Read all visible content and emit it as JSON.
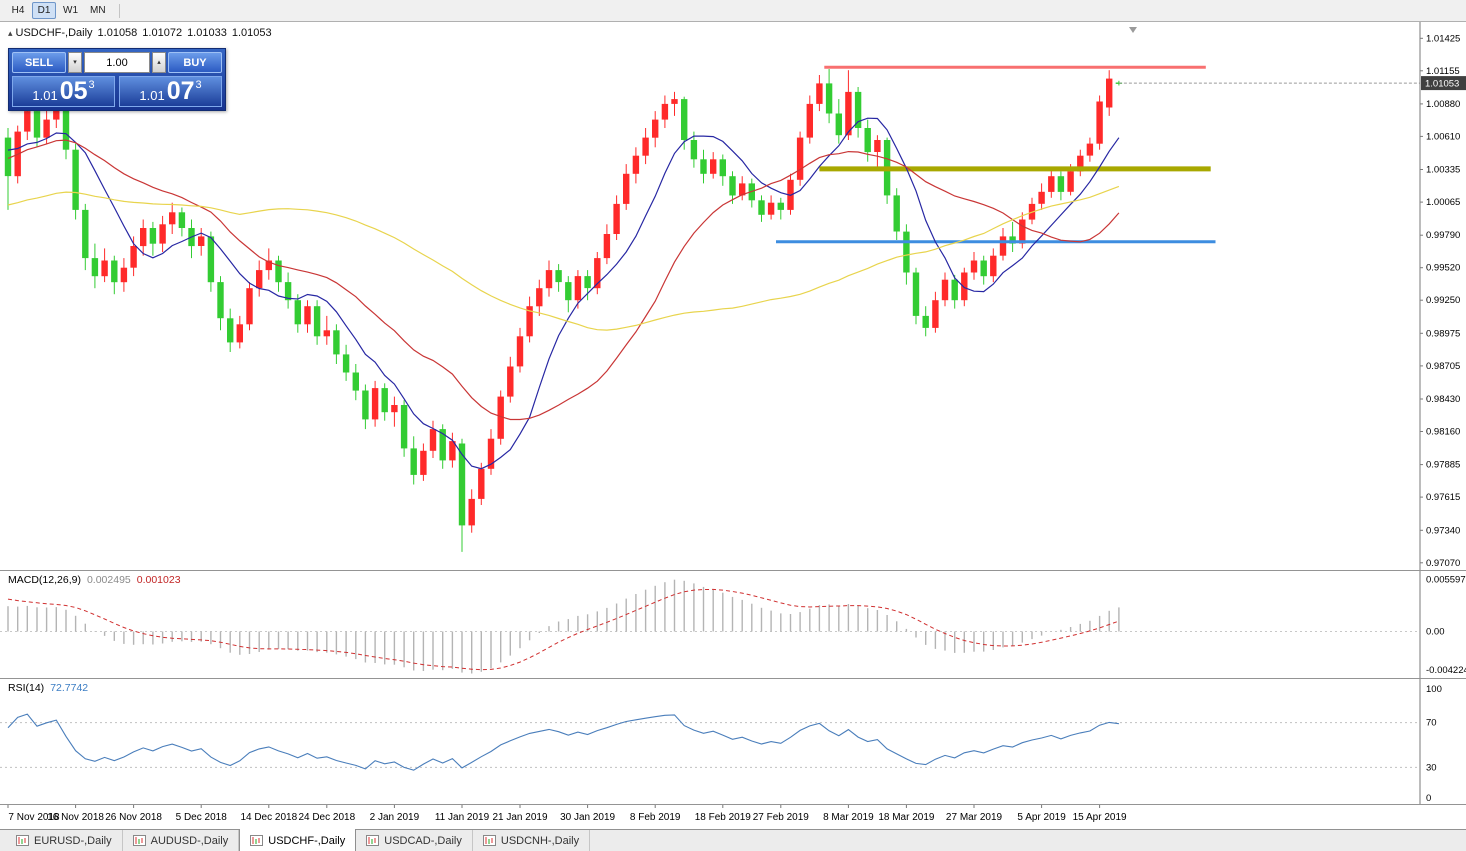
{
  "toolbar": {
    "timeframes": [
      {
        "label": "H4",
        "active": false
      },
      {
        "label": "D1",
        "active": true
      },
      {
        "label": "W1",
        "active": false
      },
      {
        "label": "MN",
        "active": false
      }
    ]
  },
  "icons": {
    "collapse_triangle": "▴",
    "volume_down": "▾",
    "volume_up": "▴"
  },
  "chart_header": {
    "symbol": "USDCHF-,Daily",
    "open": "1.01058",
    "high": "1.01072",
    "low": "1.01033",
    "close": "1.01053"
  },
  "trade_panel": {
    "sell_label": "SELL",
    "buy_label": "BUY",
    "volume": "1.00",
    "sell_price_prefix": "1.01",
    "sell_price_big": "05",
    "sell_price_sup": "3",
    "buy_price_prefix": "1.01",
    "buy_price_big": "07",
    "buy_price_sup": "3"
  },
  "price_scale": {
    "ticks": [
      "1.01425",
      "1.01155",
      "1.00880",
      "1.00610",
      "1.00335",
      "1.00065",
      "0.99790",
      "0.99520",
      "0.99250",
      "0.98975",
      "0.98705",
      "0.98430",
      "0.98160",
      "0.97885",
      "0.97615",
      "0.97340",
      "0.97070"
    ],
    "current": "1.01053"
  },
  "macd_panel": {
    "label": "MACD(12,26,9)",
    "macd_value": "0.002495",
    "signal_value": "0.001023",
    "axis_labels": [
      "0.005597",
      "0.00",
      "-0.004224"
    ]
  },
  "rsi_panel": {
    "label": "RSI(14)",
    "value": "72.7742",
    "axis_labels": [
      "100",
      "70",
      "30",
      "0"
    ]
  },
  "date_axis": {
    "labels": [
      "7 Nov 2018",
      "16 Nov 2018",
      "26 Nov 2018",
      "5 Dec 2018",
      "14 Dec 2018",
      "24 Dec 2018",
      "2 Jan 2019",
      "11 Jan 2019",
      "21 Jan 2019",
      "30 Jan 2019",
      "8 Feb 2019",
      "18 Feb 2019",
      "27 Feb 2019",
      "8 Mar 2019",
      "18 Mar 2019",
      "27 Mar 2019",
      "5 Apr 2019",
      "15 Apr 2019"
    ]
  },
  "tabs": [
    {
      "label": "EURUSD-,Daily",
      "active": false
    },
    {
      "label": "AUDUSD-,Daily",
      "active": false
    },
    {
      "label": "USDCHF-,Daily",
      "active": true
    },
    {
      "label": "USDCAD-,Daily",
      "active": false
    },
    {
      "label": "USDCNH-,Daily",
      "active": false
    }
  ],
  "chart_data": {
    "type": "candlestick",
    "symbol": "USDCHF-,Daily",
    "ylim": [
      0.9701,
      1.0156
    ],
    "up_color": "#ff2a2a",
    "down_color": "#33cc33",
    "current_price": 1.01053,
    "date_tick_indices": [
      0,
      7,
      13,
      20,
      27,
      33,
      40,
      47,
      53,
      60,
      67,
      74,
      80,
      87,
      93,
      100,
      107,
      113
    ],
    "ma": [
      {
        "period": 8,
        "color": "#2727a3"
      },
      {
        "period": 21,
        "color": "#c93636"
      },
      {
        "period": 55,
        "color": "#e8d44d"
      }
    ],
    "hlines": [
      {
        "price": 1.01185,
        "color": "#f87070",
        "width": 3,
        "from_i": 84.5,
        "to_i": 124
      },
      {
        "price": 1.0034,
        "color": "#a8a800",
        "width": 5,
        "from_i": 84,
        "to_i": 124.5
      },
      {
        "price": 0.99735,
        "color": "#3d8de0",
        "width": 3,
        "from_i": 79.5,
        "to_i": 125
      }
    ],
    "macd": {
      "fast": 12,
      "slow": 26,
      "signal_p": 9,
      "ylim": [
        -0.0047,
        0.0061
      ]
    },
    "rsi": {
      "period": 14,
      "levels": [
        70,
        30
      ]
    },
    "pre_closes": [
      0.986,
      0.9875,
      0.989,
      0.9905,
      0.9918,
      0.993,
      0.9944,
      0.9956,
      0.997,
      0.9982,
      0.9992,
      1.0002,
      1.0012,
      1.0022,
      1.0032,
      1.004,
      1.0048,
      1.0054,
      1.0058,
      1.0061,
      1.0062,
      1.006,
      1.0057,
      1.0054,
      1.0052,
      1.005,
      1.0049,
      1.0051,
      1.0055,
      1.0058
    ],
    "candles": [
      [
        1.006,
        1.0068,
        1.0,
        1.0028
      ],
      [
        1.0028,
        1.007,
        1.0022,
        1.0065
      ],
      [
        1.0065,
        1.009,
        1.0058,
        1.0082
      ],
      [
        1.0082,
        1.0088,
        1.0052,
        1.006
      ],
      [
        1.006,
        1.0085,
        1.0055,
        1.0075
      ],
      [
        1.0075,
        1.0092,
        1.0068,
        1.0088
      ],
      [
        1.0088,
        1.009,
        1.0042,
        1.005
      ],
      [
        1.005,
        1.0055,
        0.9992,
        1.0
      ],
      [
        1.0,
        1.0005,
        0.995,
        0.996
      ],
      [
        0.996,
        0.9972,
        0.9935,
        0.9945
      ],
      [
        0.9945,
        0.9968,
        0.994,
        0.9958
      ],
      [
        0.9958,
        0.9962,
        0.993,
        0.994
      ],
      [
        0.994,
        0.996,
        0.9932,
        0.9952
      ],
      [
        0.9952,
        0.9978,
        0.9945,
        0.997
      ],
      [
        0.997,
        0.9992,
        0.9962,
        0.9985
      ],
      [
        0.9985,
        0.999,
        0.9962,
        0.9972
      ],
      [
        0.9972,
        0.9995,
        0.9965,
        0.9988
      ],
      [
        0.9988,
        1.0006,
        0.998,
        0.9998
      ],
      [
        0.9998,
        1.0002,
        0.9978,
        0.9985
      ],
      [
        0.9985,
        0.9992,
        0.996,
        0.997
      ],
      [
        0.997,
        0.9985,
        0.9962,
        0.9978
      ],
      [
        0.9978,
        0.9982,
        0.9932,
        0.994
      ],
      [
        0.994,
        0.9945,
        0.99,
        0.991
      ],
      [
        0.991,
        0.9918,
        0.9882,
        0.989
      ],
      [
        0.989,
        0.9912,
        0.9885,
        0.9905
      ],
      [
        0.9905,
        0.994,
        0.99,
        0.9935
      ],
      [
        0.9935,
        0.9958,
        0.9928,
        0.995
      ],
      [
        0.995,
        0.9968,
        0.9942,
        0.9958
      ],
      [
        0.9958,
        0.9962,
        0.9932,
        0.994
      ],
      [
        0.994,
        0.9948,
        0.9918,
        0.9925
      ],
      [
        0.9925,
        0.993,
        0.9898,
        0.9905
      ],
      [
        0.9905,
        0.9925,
        0.9898,
        0.992
      ],
      [
        0.992,
        0.9925,
        0.9888,
        0.9895
      ],
      [
        0.9895,
        0.9912,
        0.9888,
        0.99
      ],
      [
        0.99,
        0.9905,
        0.9872,
        0.988
      ],
      [
        0.988,
        0.9888,
        0.9858,
        0.9865
      ],
      [
        0.9865,
        0.9872,
        0.9842,
        0.985
      ],
      [
        0.985,
        0.9855,
        0.9818,
        0.9826
      ],
      [
        0.9826,
        0.9858,
        0.982,
        0.9852
      ],
      [
        0.9852,
        0.9856,
        0.9825,
        0.9832
      ],
      [
        0.9832,
        0.9845,
        0.982,
        0.9838
      ],
      [
        0.9838,
        0.9842,
        0.9795,
        0.9802
      ],
      [
        0.9802,
        0.9812,
        0.9772,
        0.978
      ],
      [
        0.978,
        0.9806,
        0.9775,
        0.98
      ],
      [
        0.98,
        0.9825,
        0.9794,
        0.9818
      ],
      [
        0.9818,
        0.9822,
        0.9785,
        0.9792
      ],
      [
        0.9792,
        0.9815,
        0.9786,
        0.9808
      ],
      [
        0.9806,
        0.981,
        0.9716,
        0.9738
      ],
      [
        0.9738,
        0.9768,
        0.9732,
        0.976
      ],
      [
        0.976,
        0.979,
        0.9755,
        0.9785
      ],
      [
        0.9785,
        0.9818,
        0.978,
        0.981
      ],
      [
        0.981,
        0.985,
        0.9805,
        0.9845
      ],
      [
        0.9845,
        0.9878,
        0.984,
        0.987
      ],
      [
        0.987,
        0.9902,
        0.9865,
        0.9895
      ],
      [
        0.9895,
        0.9928,
        0.989,
        0.992
      ],
      [
        0.992,
        0.9942,
        0.9912,
        0.9935
      ],
      [
        0.9935,
        0.9958,
        0.9928,
        0.995
      ],
      [
        0.995,
        0.9955,
        0.9932,
        0.994
      ],
      [
        0.994,
        0.9945,
        0.9915,
        0.9925
      ],
      [
        0.9925,
        0.995,
        0.9918,
        0.9945
      ],
      [
        0.9945,
        0.995,
        0.9925,
        0.9935
      ],
      [
        0.9935,
        0.9965,
        0.993,
        0.996
      ],
      [
        0.996,
        0.9988,
        0.9955,
        0.998
      ],
      [
        0.998,
        1.0012,
        0.9975,
        1.0005
      ],
      [
        1.0005,
        1.0038,
        1.0,
        1.003
      ],
      [
        1.003,
        1.0052,
        1.0022,
        1.0045
      ],
      [
        1.0045,
        1.0068,
        1.0038,
        1.006
      ],
      [
        1.006,
        1.0082,
        1.0052,
        1.0075
      ],
      [
        1.0075,
        1.0095,
        1.0068,
        1.0088
      ],
      [
        1.0088,
        1.0098,
        1.0078,
        1.0092
      ],
      [
        1.0092,
        1.0094,
        1.005,
        1.0058
      ],
      [
        1.0058,
        1.0065,
        1.0035,
        1.0042
      ],
      [
        1.0042,
        1.005,
        1.0022,
        1.003
      ],
      [
        1.003,
        1.0048,
        1.0026,
        1.0042
      ],
      [
        1.0042,
        1.0046,
        1.002,
        1.0028
      ],
      [
        1.0028,
        1.0032,
        1.0005,
        1.0012
      ],
      [
        1.0012,
        1.0028,
        1.0008,
        1.0022
      ],
      [
        1.0022,
        1.0026,
        1.0002,
        1.0008
      ],
      [
        1.0008,
        1.0012,
        0.999,
        0.9996
      ],
      [
        0.9996,
        1.0012,
        0.9992,
        1.0006
      ],
      [
        1.0006,
        1.001,
        0.9992,
        1.0
      ],
      [
        1.0,
        1.003,
        0.9996,
        1.0025
      ],
      [
        1.0025,
        1.0065,
        1.002,
        1.006
      ],
      [
        1.006,
        1.0095,
        1.0055,
        1.0088
      ],
      [
        1.0088,
        1.0112,
        1.0082,
        1.0105
      ],
      [
        1.0105,
        1.0117,
        1.0072,
        1.008
      ],
      [
        1.008,
        1.0092,
        1.0055,
        1.0062
      ],
      [
        1.0062,
        1.0116,
        1.0058,
        1.0098
      ],
      [
        1.0098,
        1.0102,
        1.006,
        1.0068
      ],
      [
        1.0068,
        1.0075,
        1.004,
        1.0048
      ],
      [
        1.0048,
        1.0062,
        1.0035,
        1.0058
      ],
      [
        1.0058,
        1.006,
        1.0005,
        1.0012
      ],
      [
        1.0012,
        1.0018,
        0.9975,
        0.9982
      ],
      [
        0.9982,
        0.9988,
        0.9938,
        0.9948
      ],
      [
        0.9948,
        0.9952,
        0.9905,
        0.9912
      ],
      [
        0.9912,
        0.992,
        0.9895,
        0.9902
      ],
      [
        0.9902,
        0.9932,
        0.9898,
        0.9925
      ],
      [
        0.9925,
        0.9948,
        0.992,
        0.9942
      ],
      [
        0.9942,
        0.9946,
        0.9918,
        0.9925
      ],
      [
        0.9925,
        0.9952,
        0.992,
        0.9948
      ],
      [
        0.9948,
        0.9965,
        0.9942,
        0.9958
      ],
      [
        0.9958,
        0.9962,
        0.9938,
        0.9945
      ],
      [
        0.9945,
        0.9968,
        0.994,
        0.9962
      ],
      [
        0.9962,
        0.9985,
        0.9958,
        0.9978
      ],
      [
        0.9978,
        0.999,
        0.9965,
        0.9972
      ],
      [
        0.9972,
        0.9998,
        0.9968,
        0.9992
      ],
      [
        0.9992,
        1.001,
        0.9988,
        1.0005
      ],
      [
        1.0005,
        1.0022,
        1.0,
        1.0015
      ],
      [
        1.0015,
        1.0035,
        1.001,
        1.0028
      ],
      [
        1.0028,
        1.0032,
        1.0008,
        1.0015
      ],
      [
        1.0015,
        1.0038,
        1.0012,
        1.0032
      ],
      [
        1.0032,
        1.005,
        1.0028,
        1.0045
      ],
      [
        1.0045,
        1.006,
        1.004,
        1.0055
      ],
      [
        1.0055,
        1.0095,
        1.005,
        1.009
      ],
      [
        1.0085,
        1.0116,
        1.0078,
        1.0109
      ],
      [
        1.01058,
        1.01072,
        1.01033,
        1.01053
      ]
    ]
  }
}
